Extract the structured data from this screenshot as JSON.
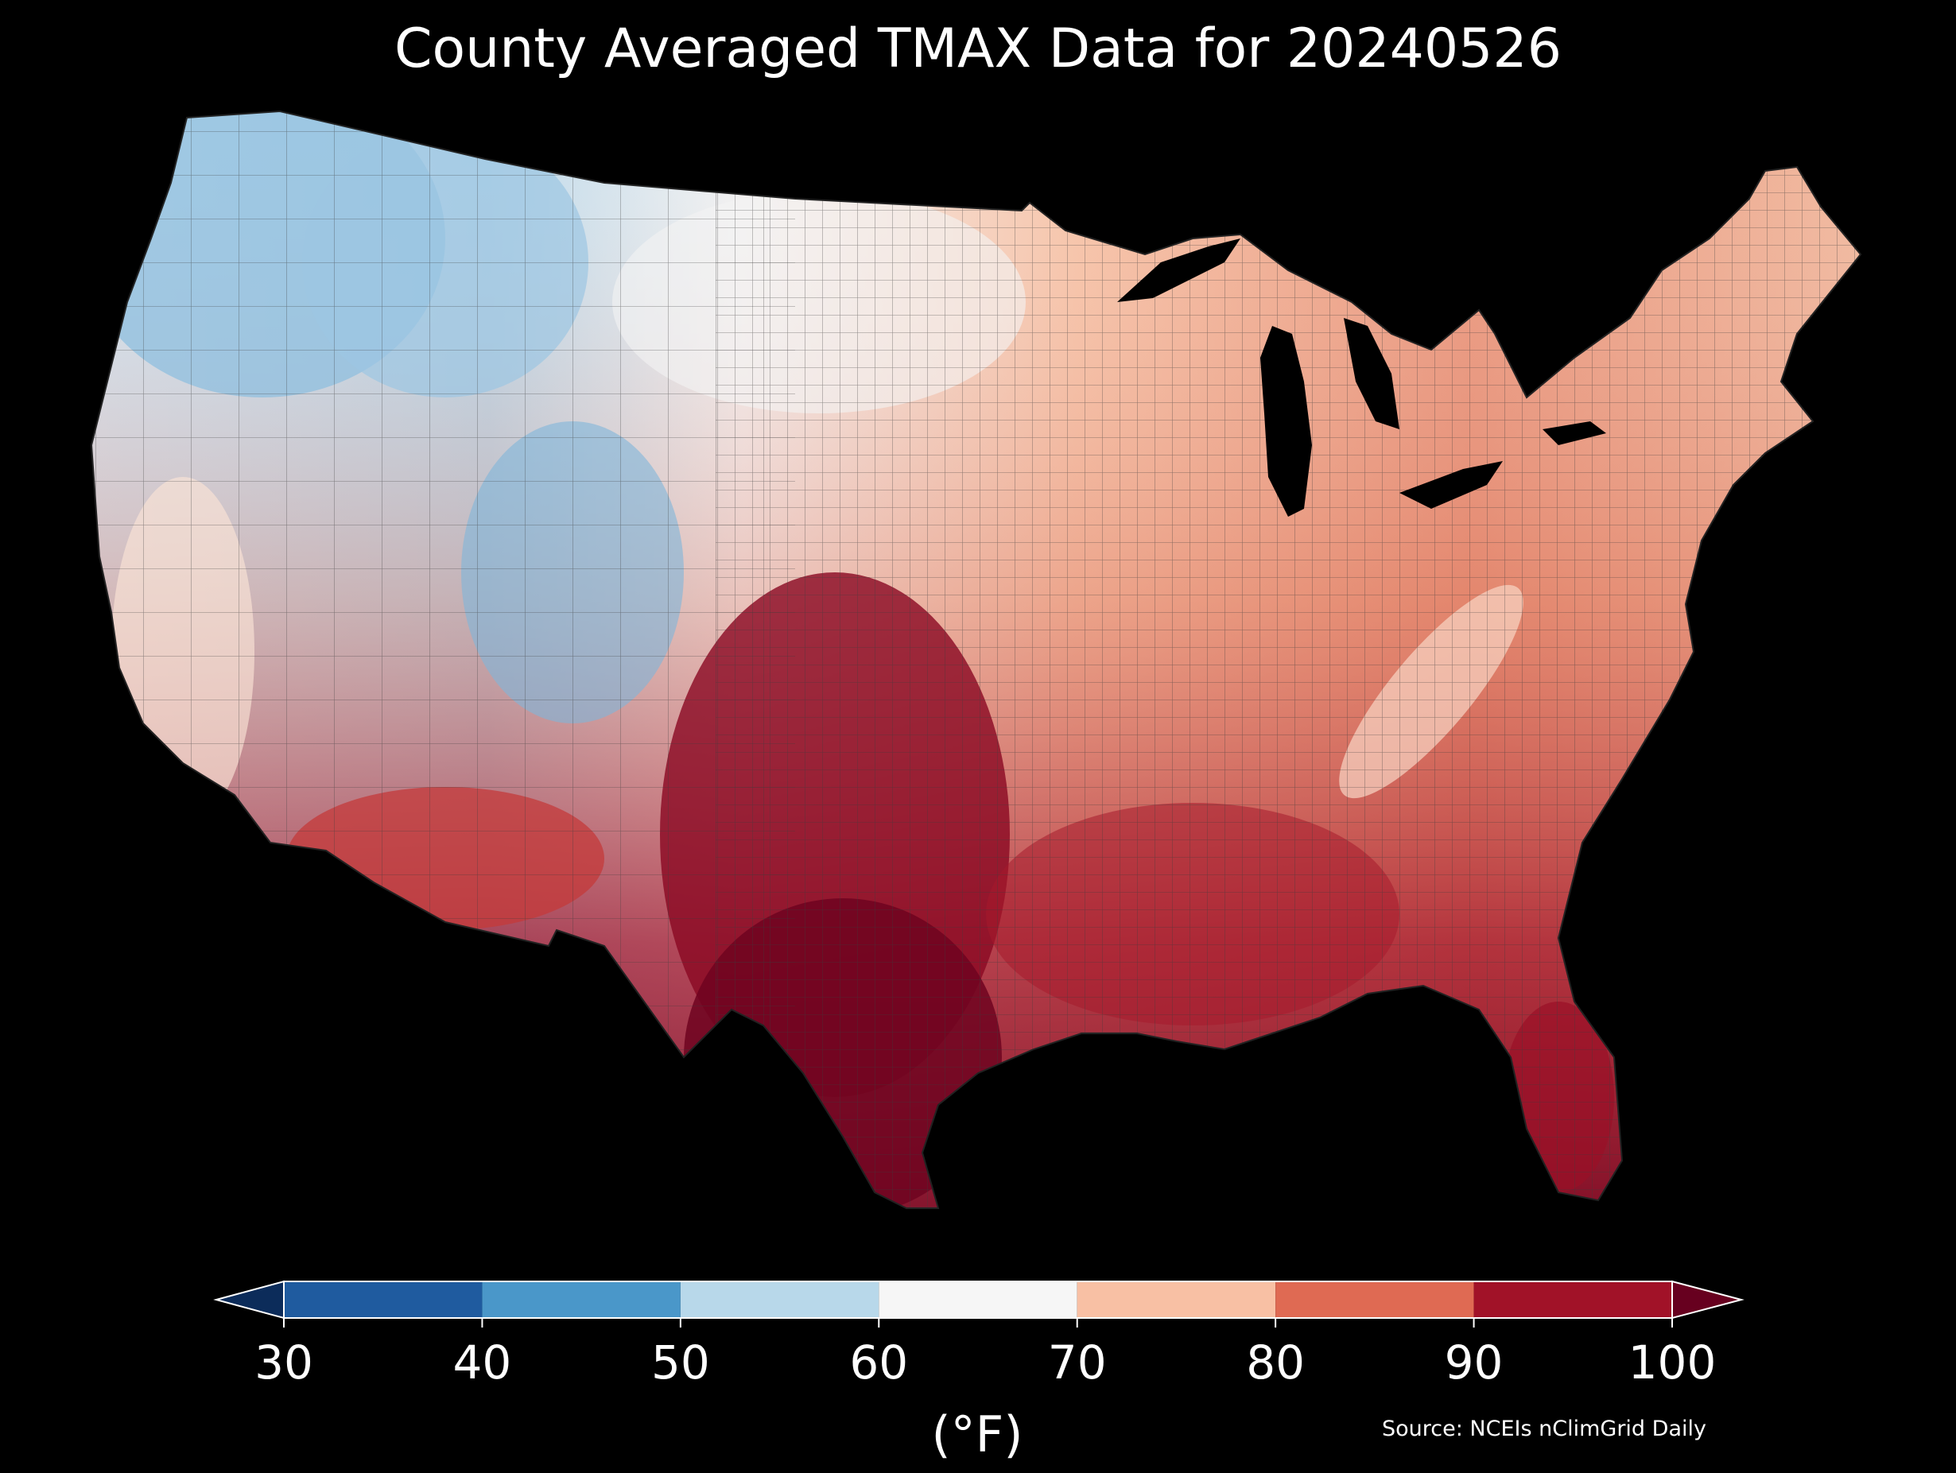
{
  "title": "County Averaged TMAX Data for 20240526",
  "colorbar": {
    "ticks": [
      "30",
      "40",
      "50",
      "60",
      "70",
      "80",
      "90",
      "100"
    ],
    "bins": [
      {
        "from": 30,
        "to": 40,
        "color": "#1f5b9f"
      },
      {
        "from": 40,
        "to": 50,
        "color": "#4a97c9"
      },
      {
        "from": 50,
        "to": 60,
        "color": "#b8d8ea"
      },
      {
        "from": 60,
        "to": 70,
        "color": "#f6f6f6"
      },
      {
        "from": 70,
        "to": 80,
        "color": "#f8c0a4"
      },
      {
        "from": 80,
        "to": 90,
        "color": "#df6a53"
      },
      {
        "from": 90,
        "to": 100,
        "color": "#a11228"
      }
    ],
    "under_color": "#0c2c5a",
    "over_color": "#67001f",
    "unit": "(°F)"
  },
  "source": "Source: NCEIs nClimGrid Daily",
  "map": {
    "region": "contiguous United States",
    "palette": {
      "water": "#000000",
      "county_border": "#333333"
    }
  }
}
